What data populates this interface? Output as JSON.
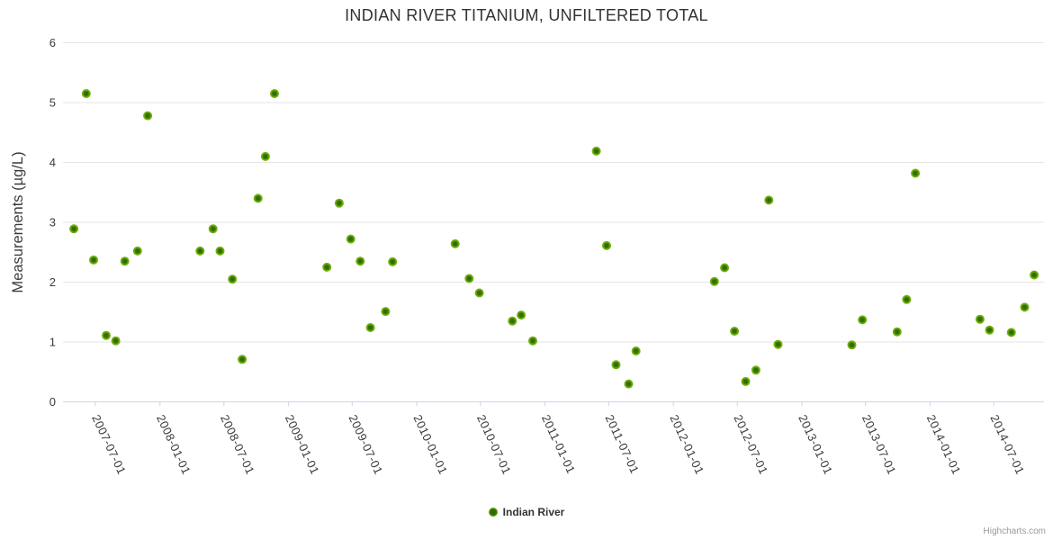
{
  "chart_data": {
    "type": "scatter",
    "title": "INDIAN RIVER TITANIUM, UNFILTERED TOTAL",
    "xlabel": "",
    "ylabel": "Measurements (µg/L)",
    "ylim": [
      0,
      6
    ],
    "y_ticks": [
      0,
      1,
      2,
      3,
      4,
      5,
      6
    ],
    "x_ticks": [
      "2007-07-01",
      "2008-01-01",
      "2008-07-01",
      "2009-01-01",
      "2009-07-01",
      "2010-01-01",
      "2010-07-01",
      "2011-01-01",
      "2011-07-01",
      "2012-01-01",
      "2012-07-01",
      "2013-01-01",
      "2013-07-01",
      "2014-01-01",
      "2014-07-01"
    ],
    "x_range": [
      "2007-03-31",
      "2014-11-21"
    ],
    "grid": true,
    "legend_position": "bottom-center",
    "series": [
      {
        "name": "Indian River",
        "marker_color": "#74b00a",
        "marker_center_color": "#2d6e04",
        "points": [
          {
            "date": "2007-05-01",
            "value": 2.89
          },
          {
            "date": "2007-06-05",
            "value": 5.15
          },
          {
            "date": "2007-06-26",
            "value": 2.37
          },
          {
            "date": "2007-08-01",
            "value": 1.11
          },
          {
            "date": "2007-08-28",
            "value": 1.02
          },
          {
            "date": "2007-09-23",
            "value": 2.35
          },
          {
            "date": "2007-10-29",
            "value": 2.52
          },
          {
            "date": "2007-11-27",
            "value": 4.78
          },
          {
            "date": "2008-04-24",
            "value": 2.52
          },
          {
            "date": "2008-05-31",
            "value": 2.89
          },
          {
            "date": "2008-06-20",
            "value": 2.52
          },
          {
            "date": "2008-07-25",
            "value": 2.05
          },
          {
            "date": "2008-08-22",
            "value": 0.71
          },
          {
            "date": "2008-10-06",
            "value": 3.4
          },
          {
            "date": "2008-10-27",
            "value": 4.1
          },
          {
            "date": "2008-11-22",
            "value": 5.15
          },
          {
            "date": "2009-04-20",
            "value": 2.25
          },
          {
            "date": "2009-05-25",
            "value": 3.32
          },
          {
            "date": "2009-06-27",
            "value": 2.72
          },
          {
            "date": "2009-07-24",
            "value": 2.35
          },
          {
            "date": "2009-08-22",
            "value": 1.24
          },
          {
            "date": "2009-10-04",
            "value": 1.51
          },
          {
            "date": "2009-10-24",
            "value": 2.34
          },
          {
            "date": "2010-04-20",
            "value": 2.64
          },
          {
            "date": "2010-05-30",
            "value": 2.06
          },
          {
            "date": "2010-06-28",
            "value": 1.82
          },
          {
            "date": "2010-09-30",
            "value": 1.35
          },
          {
            "date": "2010-10-25",
            "value": 1.45
          },
          {
            "date": "2010-11-27",
            "value": 1.02
          },
          {
            "date": "2011-05-27",
            "value": 4.19
          },
          {
            "date": "2011-06-25",
            "value": 2.61
          },
          {
            "date": "2011-07-22",
            "value": 0.62
          },
          {
            "date": "2011-08-27",
            "value": 0.3
          },
          {
            "date": "2011-09-17",
            "value": 0.85
          },
          {
            "date": "2012-04-27",
            "value": 2.01
          },
          {
            "date": "2012-05-26",
            "value": 2.24
          },
          {
            "date": "2012-06-23",
            "value": 1.18
          },
          {
            "date": "2012-07-25",
            "value": 0.34
          },
          {
            "date": "2012-08-23",
            "value": 0.53
          },
          {
            "date": "2012-09-29",
            "value": 3.37
          },
          {
            "date": "2012-10-25",
            "value": 0.96
          },
          {
            "date": "2013-05-23",
            "value": 0.95
          },
          {
            "date": "2013-06-22",
            "value": 1.37
          },
          {
            "date": "2013-09-29",
            "value": 1.17
          },
          {
            "date": "2013-10-26",
            "value": 1.71
          },
          {
            "date": "2013-11-20",
            "value": 3.82
          },
          {
            "date": "2014-05-23",
            "value": 1.38
          },
          {
            "date": "2014-06-19",
            "value": 1.2
          },
          {
            "date": "2014-08-20",
            "value": 1.16
          },
          {
            "date": "2014-09-27",
            "value": 1.58
          },
          {
            "date": "2014-10-24",
            "value": 2.12
          }
        ]
      }
    ]
  },
  "credits": {
    "label": "Highcharts.com"
  }
}
